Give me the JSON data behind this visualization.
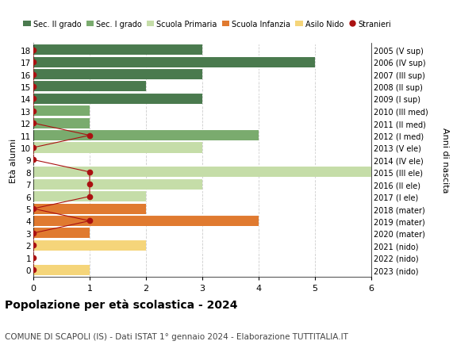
{
  "ages": [
    18,
    17,
    16,
    15,
    14,
    13,
    12,
    11,
    10,
    9,
    8,
    7,
    6,
    5,
    4,
    3,
    2,
    1,
    0
  ],
  "right_labels": [
    "2005 (V sup)",
    "2006 (IV sup)",
    "2007 (III sup)",
    "2008 (II sup)",
    "2009 (I sup)",
    "2010 (III med)",
    "2011 (II med)",
    "2012 (I med)",
    "2013 (V ele)",
    "2014 (IV ele)",
    "2015 (III ele)",
    "2016 (II ele)",
    "2017 (I ele)",
    "2018 (mater)",
    "2019 (mater)",
    "2020 (mater)",
    "2021 (nido)",
    "2022 (nido)",
    "2023 (nido)"
  ],
  "bar_values": [
    3,
    5,
    3,
    2,
    3,
    1,
    1,
    4,
    3,
    0,
    6.5,
    3,
    2,
    2,
    4,
    1,
    2,
    0,
    1
  ],
  "bar_colors": [
    "#4a7a4e",
    "#4a7a4e",
    "#4a7a4e",
    "#4a7a4e",
    "#4a7a4e",
    "#7aab6e",
    "#7aab6e",
    "#7aab6e",
    "#c5dda8",
    "#c5dda8",
    "#c5dda8",
    "#c5dda8",
    "#c5dda8",
    "#e07a30",
    "#e07a30",
    "#e07a30",
    "#f5d57a",
    "#f5d57a",
    "#f5d57a"
  ],
  "stranieri_values": [
    0,
    0,
    0,
    0,
    0,
    0,
    0,
    1,
    0,
    0,
    1,
    1,
    1,
    0,
    1,
    0,
    0,
    0,
    0
  ],
  "legend_labels": [
    "Sec. II grado",
    "Sec. I grado",
    "Scuola Primaria",
    "Scuola Infanzia",
    "Asilo Nido",
    "Stranieri"
  ],
  "legend_colors": [
    "#4a7a4e",
    "#7aab6e",
    "#c5dda8",
    "#e07a30",
    "#f5d57a",
    "#aa1111"
  ],
  "ylabel_left": "Età alunni",
  "ylabel_right": "Anni di nascita",
  "title": "Popolazione per età scolastica - 2024",
  "subtitle": "COMUNE DI SCAPOLI (IS) - Dati ISTAT 1° gennaio 2024 - Elaborazione TUTTITALIA.IT",
  "xlim": [
    0,
    6
  ],
  "xticks": [
    0,
    1,
    2,
    3,
    4,
    5,
    6
  ],
  "background_color": "#ffffff",
  "grid_color": "#cccccc"
}
